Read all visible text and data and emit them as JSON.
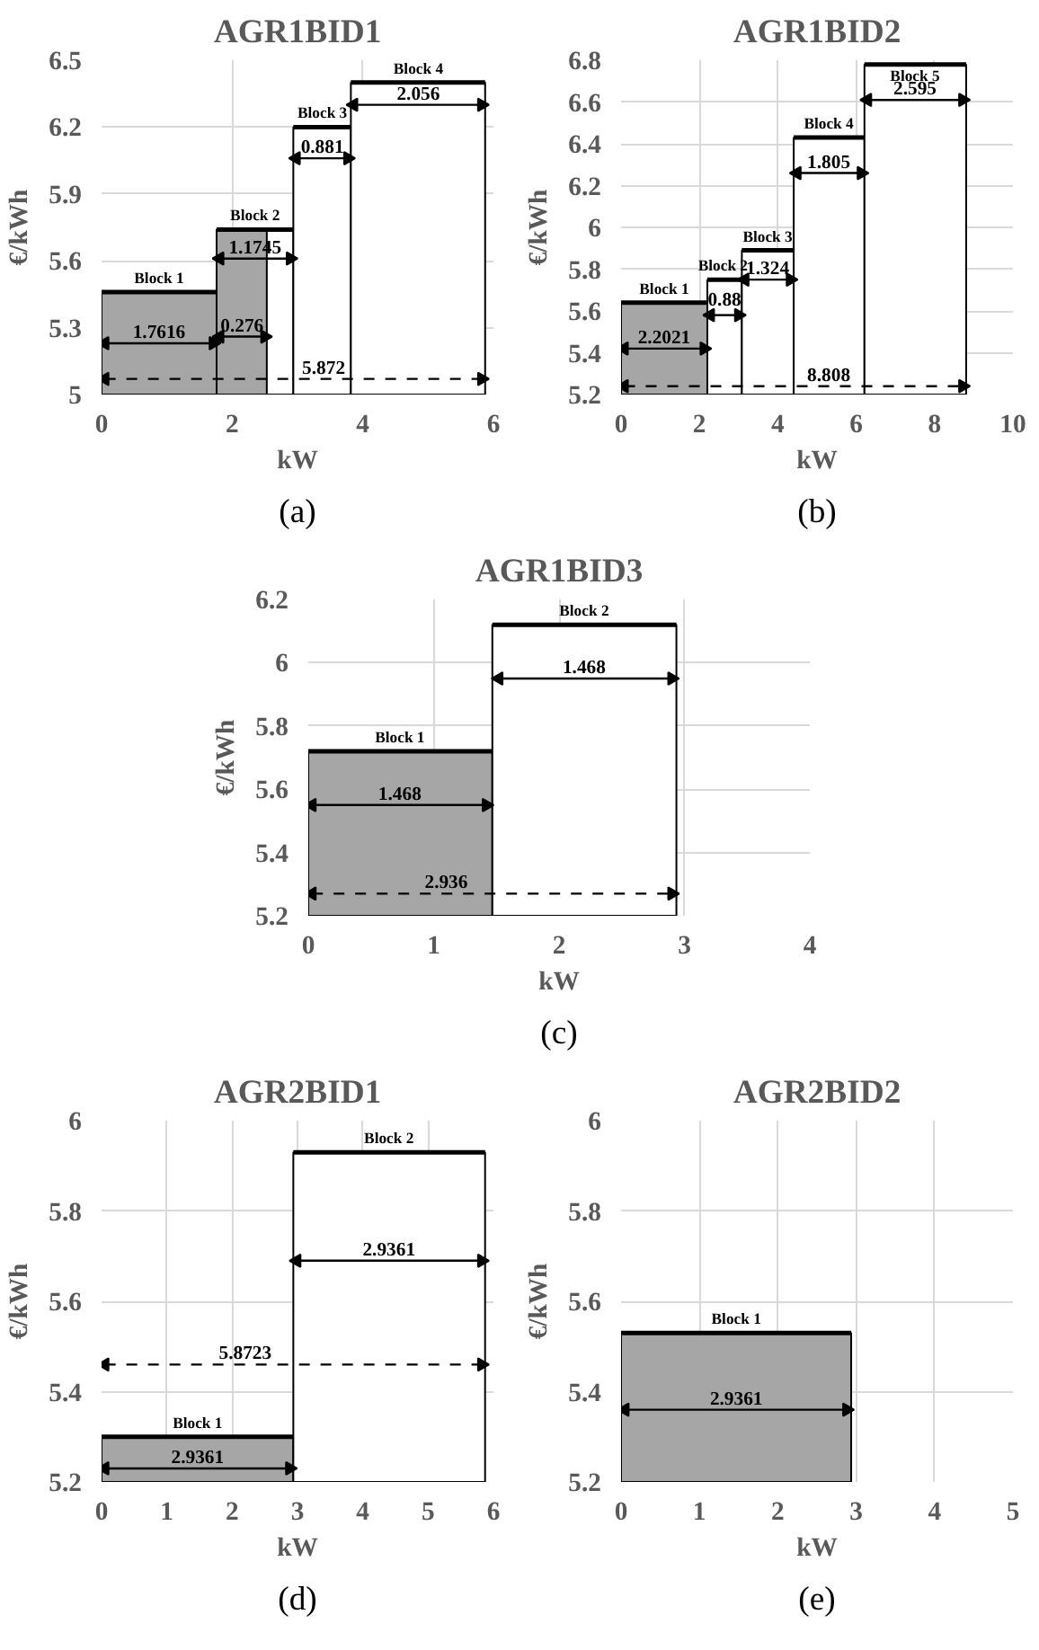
{
  "chart_data": [
    {
      "type": "area",
      "title": "AGR1BID1",
      "xlabel": "kW",
      "ylabel": "€/kWh",
      "xlim": [
        0,
        6
      ],
      "xticks": [
        0,
        2,
        4,
        6
      ],
      "ylim": [
        5,
        6.5
      ],
      "yticks": [
        5,
        5.3,
        5.6,
        5.9,
        6.2,
        6.5
      ],
      "grid": true,
      "series": [
        {
          "color": "#a6a6a6",
          "x": [
            0,
            1.7616
          ],
          "values": [
            5.46,
            5.46
          ]
        },
        {
          "color": "#ffffff",
          "x": [
            1.7616,
            2.9361
          ],
          "values": [
            5.74,
            5.74
          ]
        },
        {
          "color": "#a6a6a6",
          "x": [
            1.7616,
            2.53
          ],
          "values": [
            5.74,
            5.74
          ]
        },
        {
          "color": "#ffffff",
          "x": [
            2.9361,
            3.8171
          ],
          "values": [
            6.2,
            6.2
          ]
        },
        {
          "color": "#ffffff",
          "x": [
            3.8171,
            5.8731
          ],
          "values": [
            6.4,
            6.4
          ]
        },
        {
          "type": "line",
          "marker": "triangle",
          "color": "#000000",
          "x": [
            0.05,
            1.71
          ],
          "values": [
            5.23,
            5.23
          ]
        },
        {
          "type": "line",
          "marker": "triangle",
          "color": "#000000",
          "x": [
            1.81,
            2.5
          ],
          "values": [
            5.26,
            5.26
          ]
        },
        {
          "type": "line",
          "marker": "triangle",
          "color": "#000000",
          "x": [
            1.81,
            2.89
          ],
          "values": [
            5.61,
            5.61
          ]
        },
        {
          "type": "line",
          "marker": "triangle",
          "color": "#000000",
          "x": [
            2.98,
            3.77
          ],
          "values": [
            6.06,
            6.06
          ]
        },
        {
          "type": "line",
          "marker": "triangle",
          "color": "#000000",
          "x": [
            3.86,
            5.82
          ],
          "values": [
            6.3,
            6.3
          ]
        },
        {
          "type": "line",
          "marker": "triangle",
          "color": "#000000",
          "line_style": "dashed",
          "x": [
            0.05,
            5.82
          ],
          "values": [
            5.07,
            5.07
          ]
        }
      ],
      "annotations": [
        {
          "text": "Block 1",
          "x": 0.88,
          "y": 5.46
        },
        {
          "text": "Block 2",
          "x": 2.35,
          "y": 5.74
        },
        {
          "text": "Block 3",
          "x": 3.38,
          "y": 6.2
        },
        {
          "text": "Block 4",
          "x": 4.85,
          "y": 6.4
        },
        {
          "text": "1.7616",
          "x": 0.88,
          "y": 5.23
        },
        {
          "text": "0.276",
          "x": 2.15,
          "y": 5.26
        },
        {
          "text": "1.1745",
          "x": 2.35,
          "y": 5.61
        },
        {
          "text": "0.881",
          "x": 3.38,
          "y": 6.06
        },
        {
          "text": "2.056",
          "x": 4.85,
          "y": 6.3
        },
        {
          "text": "5.872",
          "x": 3.4,
          "y": 5.07
        },
        "(a)"
      ]
    },
    {
      "type": "area",
      "title": "AGR1BID2",
      "xlabel": "kW",
      "ylabel": "€/kWh",
      "xlim": [
        0,
        10
      ],
      "xticks": [
        0,
        2,
        4,
        6,
        8,
        10
      ],
      "ylim": [
        5.2,
        6.8
      ],
      "yticks": [
        5.2,
        5.4,
        5.6,
        5.8,
        6,
        6.2,
        6.4,
        6.6,
        6.8
      ],
      "grid": true,
      "series": [
        {
          "color": "#a6a6a6",
          "x": [
            0,
            2.2021
          ],
          "values": [
            5.64,
            5.64
          ]
        },
        {
          "color": "#ffffff",
          "x": [
            2.2021,
            3.0821
          ],
          "values": [
            5.75,
            5.75
          ]
        },
        {
          "color": "#ffffff",
          "x": [
            3.0821,
            4.4061
          ],
          "values": [
            5.89,
            5.89
          ]
        },
        {
          "color": "#ffffff",
          "x": [
            4.4061,
            6.2111
          ],
          "values": [
            6.43,
            6.43
          ]
        },
        {
          "color": "#ffffff",
          "x": [
            6.2111,
            8.8061
          ],
          "values": [
            6.78,
            6.78
          ]
        },
        {
          "type": "line",
          "marker": "triangle",
          "color": "#000000",
          "x": [
            0.08,
            2.12
          ],
          "values": [
            5.42,
            5.42
          ]
        },
        {
          "type": "line",
          "marker": "triangle",
          "color": "#000000",
          "x": [
            2.28,
            3.0
          ],
          "values": [
            5.58,
            5.58
          ]
        },
        {
          "type": "line",
          "marker": "triangle",
          "color": "#000000",
          "x": [
            3.16,
            4.32
          ],
          "values": [
            5.75,
            5.75
          ]
        },
        {
          "type": "line",
          "marker": "triangle",
          "color": "#000000",
          "x": [
            4.49,
            6.13
          ],
          "values": [
            6.26,
            6.26
          ]
        },
        {
          "type": "line",
          "marker": "triangle",
          "color": "#000000",
          "x": [
            6.29,
            8.72
          ],
          "values": [
            6.61,
            6.61
          ]
        },
        {
          "type": "line",
          "marker": "triangle",
          "color": "#000000",
          "line_style": "dashed",
          "x": [
            0.08,
            8.72
          ],
          "values": [
            5.24,
            5.24
          ]
        }
      ],
      "annotations": [
        {
          "text": "Block 1",
          "x": 1.1,
          "y": 5.64
        },
        {
          "text": "Block 2",
          "x": 2.6,
          "y": 5.75
        },
        {
          "text": "Block 3",
          "x": 3.74,
          "y": 5.89
        },
        {
          "text": "Block 4",
          "x": 5.3,
          "y": 6.43
        },
        {
          "text": "Block 5",
          "x": 7.5,
          "y": 6.78
        },
        {
          "text": "2.2021",
          "x": 1.1,
          "y": 5.42
        },
        {
          "text": "0.88",
          "x": 2.64,
          "y": 5.6
        },
        {
          "text": "1.324",
          "x": 3.74,
          "y": 5.75
        },
        {
          "text": "1.805",
          "x": 5.3,
          "y": 6.26
        },
        {
          "text": "2.595",
          "x": 7.5,
          "y": 6.61
        },
        {
          "text": "8.808",
          "x": 5.3,
          "y": 5.24
        },
        "(b)"
      ]
    },
    {
      "type": "area",
      "title": "AGR1BID3",
      "xlabel": "kW",
      "ylabel": "€/kWh",
      "xlim": [
        0,
        4
      ],
      "xticks": [
        0,
        1,
        2,
        3,
        4
      ],
      "ylim": [
        5.2,
        6.2
      ],
      "yticks": [
        5.2,
        5.4,
        5.6,
        5.8,
        6,
        6.2
      ],
      "grid": true,
      "series": [
        {
          "color": "#a6a6a6",
          "x": [
            0,
            1.468
          ],
          "values": [
            5.72,
            5.72
          ]
        },
        {
          "color": "#ffffff",
          "x": [
            1.468,
            2.936
          ],
          "values": [
            6.12,
            6.12
          ]
        },
        {
          "type": "line",
          "marker": "triangle",
          "color": "#000000",
          "x": [
            0.03,
            1.42
          ],
          "values": [
            5.55,
            5.55
          ]
        },
        {
          "type": "line",
          "marker": "triangle",
          "color": "#000000",
          "x": [
            1.52,
            2.9
          ],
          "values": [
            5.95,
            5.95
          ]
        },
        {
          "type": "line",
          "marker": "triangle",
          "color": "#000000",
          "line_style": "dashed",
          "x": [
            0.03,
            2.9
          ],
          "values": [
            5.27,
            5.27
          ]
        }
      ],
      "annotations": [
        {
          "text": "Block 1",
          "x": 0.73,
          "y": 5.72
        },
        {
          "text": "Block 2",
          "x": 2.2,
          "y": 6.12
        },
        {
          "text": "1.468",
          "x": 0.73,
          "y": 5.55
        },
        {
          "text": "1.468",
          "x": 2.2,
          "y": 5.95
        },
        {
          "text": "2.936",
          "x": 1.1,
          "y": 5.27
        },
        "(c)"
      ]
    },
    {
      "type": "area",
      "title": "AGR2BID1",
      "xlabel": "kW",
      "ylabel": "€/kWh",
      "xlim": [
        0,
        6
      ],
      "xticks": [
        0,
        1,
        2,
        3,
        4,
        5,
        6
      ],
      "ylim": [
        5.2,
        6
      ],
      "yticks": [
        5.2,
        5.4,
        5.6,
        5.8,
        6
      ],
      "grid": true,
      "series": [
        {
          "color": "#a6a6a6",
          "x": [
            0,
            2.9361
          ],
          "values": [
            5.3,
            5.3
          ]
        },
        {
          "color": "#ffffff",
          "x": [
            2.9361,
            5.8722
          ],
          "values": [
            5.93,
            5.93
          ]
        },
        {
          "type": "line",
          "marker": "triangle",
          "color": "#000000",
          "x": [
            0.05,
            2.88
          ],
          "values": [
            5.23,
            5.23
          ]
        },
        {
          "type": "line",
          "marker": "triangle",
          "color": "#000000",
          "x": [
            2.99,
            5.82
          ],
          "values": [
            5.69,
            5.69
          ]
        },
        {
          "type": "line",
          "marker": "triangle",
          "color": "#000000",
          "line_style": "dashed",
          "x": [
            0.05,
            5.82
          ],
          "values": [
            5.46,
            5.46
          ]
        }
      ],
      "annotations": [
        {
          "text": "Block 1",
          "x": 1.47,
          "y": 5.3
        },
        {
          "text": "Block 2",
          "x": 4.4,
          "y": 5.93
        },
        {
          "text": "2.9361",
          "x": 1.47,
          "y": 5.23
        },
        {
          "text": "2.9361",
          "x": 4.4,
          "y": 5.69
        },
        {
          "text": "5.8723",
          "x": 2.2,
          "y": 5.46
        },
        "(d)"
      ]
    },
    {
      "type": "area",
      "title": "AGR2BID2",
      "xlabel": "kW",
      "ylabel": "€/kWh",
      "xlim": [
        0,
        5
      ],
      "xticks": [
        0,
        1,
        2,
        3,
        4,
        5
      ],
      "ylim": [
        5.2,
        6
      ],
      "yticks": [
        5.2,
        5.4,
        5.6,
        5.8,
        6
      ],
      "grid": true,
      "series": [
        {
          "color": "#a6a6a6",
          "x": [
            0,
            2.9361
          ],
          "values": [
            5.53,
            5.53
          ]
        },
        {
          "type": "line",
          "marker": "triangle",
          "color": "#000000",
          "x": [
            0.05,
            2.88
          ],
          "values": [
            5.36,
            5.36
          ]
        }
      ],
      "annotations": [
        {
          "text": "Block 1",
          "x": 1.47,
          "y": 5.53
        },
        {
          "text": "2.9361",
          "x": 1.47,
          "y": 5.36
        },
        "(e)"
      ]
    }
  ]
}
